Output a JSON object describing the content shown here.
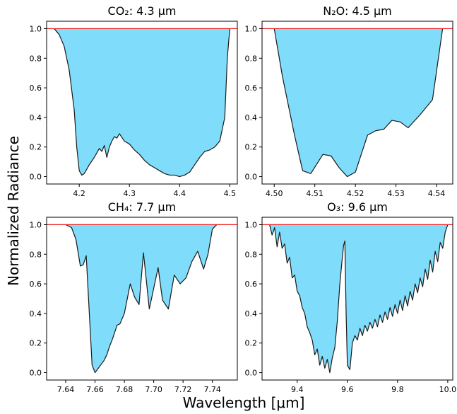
{
  "figure": {
    "ylabel": "Normalized Radiance",
    "xlabel": "Wavelength [μm]"
  },
  "colors": {
    "fill": "#7fdcfb",
    "edge": "#1a1a1a",
    "reference_line": "#ee2222"
  },
  "chart_data": [
    {
      "type": "area",
      "title": "CO₂: 4.3 μm",
      "xlim": [
        4.135,
        4.515
      ],
      "ylim": [
        -0.05,
        1.05
      ],
      "xticks": [
        4.2,
        4.3,
        4.4,
        4.5
      ],
      "xtick_labels": [
        "4.2",
        "4.3",
        "4.4",
        "4.5"
      ],
      "yticks": [
        0.0,
        0.2,
        0.4,
        0.6,
        0.8,
        1.0
      ],
      "ytick_labels": [
        "0.0",
        "0.2",
        "0.4",
        "0.6",
        "0.8",
        "1.0"
      ],
      "reference_y": 1.0,
      "x": [
        4.15,
        4.16,
        4.17,
        4.18,
        4.19,
        4.195,
        4.2,
        4.205,
        4.21,
        4.22,
        4.23,
        4.24,
        4.245,
        4.25,
        4.255,
        4.26,
        4.265,
        4.27,
        4.275,
        4.28,
        4.29,
        4.3,
        4.31,
        4.32,
        4.33,
        4.34,
        4.35,
        4.36,
        4.37,
        4.38,
        4.39,
        4.4,
        4.41,
        4.42,
        4.43,
        4.44,
        4.45,
        4.46,
        4.47,
        4.48,
        4.49,
        4.495,
        4.5
      ],
      "y": [
        1.0,
        0.96,
        0.88,
        0.72,
        0.45,
        0.2,
        0.04,
        0.01,
        0.02,
        0.08,
        0.13,
        0.19,
        0.17,
        0.21,
        0.13,
        0.2,
        0.24,
        0.27,
        0.26,
        0.29,
        0.24,
        0.22,
        0.18,
        0.15,
        0.11,
        0.08,
        0.06,
        0.04,
        0.02,
        0.01,
        0.01,
        0.0,
        0.01,
        0.03,
        0.08,
        0.13,
        0.17,
        0.18,
        0.2,
        0.24,
        0.4,
        0.8,
        1.0
      ]
    },
    {
      "type": "area",
      "title": "N₂O: 4.5 μm",
      "xlim": [
        4.497,
        4.544
      ],
      "ylim": [
        -0.05,
        1.05
      ],
      "xticks": [
        4.5,
        4.51,
        4.52,
        4.53,
        4.54
      ],
      "xtick_labels": [
        "4.50",
        "4.51",
        "4.52",
        "4.53",
        "4.54"
      ],
      "yticks": [
        0.0,
        0.2,
        0.4,
        0.6,
        0.8,
        1.0
      ],
      "ytick_labels": [
        "0.0",
        "0.2",
        "0.4",
        "0.6",
        "0.8",
        "1.0"
      ],
      "reference_y": 1.0,
      "x": [
        4.5,
        4.502,
        4.505,
        4.507,
        4.509,
        4.512,
        4.514,
        4.516,
        4.518,
        4.52,
        4.523,
        4.525,
        4.527,
        4.529,
        4.531,
        4.533,
        4.536,
        4.539,
        4.5415
      ],
      "y": [
        1.0,
        0.68,
        0.28,
        0.04,
        0.02,
        0.15,
        0.14,
        0.06,
        0.0,
        0.03,
        0.28,
        0.31,
        0.32,
        0.38,
        0.37,
        0.33,
        0.42,
        0.52,
        1.0
      ]
    },
    {
      "type": "area",
      "title": "CH₄: 7.7 μm",
      "xlim": [
        7.627,
        7.757
      ],
      "ylim": [
        -0.05,
        1.05
      ],
      "xticks": [
        7.64,
        7.66,
        7.68,
        7.7,
        7.72,
        7.74
      ],
      "xtick_labels": [
        "7.64",
        "7.66",
        "7.68",
        "7.70",
        "7.72",
        "7.74"
      ],
      "yticks": [
        0.0,
        0.2,
        0.4,
        0.6,
        0.8,
        1.0
      ],
      "ytick_labels": [
        "0.0",
        "0.2",
        "0.4",
        "0.6",
        "0.8",
        "1.0"
      ],
      "reference_y": 1.0,
      "x": [
        7.64,
        7.644,
        7.647,
        7.65,
        7.652,
        7.654,
        7.656,
        7.658,
        7.66,
        7.663,
        7.666,
        7.668,
        7.67,
        7.672,
        7.675,
        7.677,
        7.68,
        7.684,
        7.687,
        7.69,
        7.693,
        7.697,
        7.7,
        7.703,
        7.706,
        7.71,
        7.714,
        7.718,
        7.722,
        7.726,
        7.73,
        7.734,
        7.737,
        7.74,
        7.743
      ],
      "y": [
        1.0,
        0.98,
        0.9,
        0.72,
        0.73,
        0.79,
        0.42,
        0.05,
        0.0,
        0.04,
        0.08,
        0.12,
        0.18,
        0.23,
        0.32,
        0.33,
        0.4,
        0.6,
        0.51,
        0.46,
        0.81,
        0.43,
        0.57,
        0.71,
        0.49,
        0.43,
        0.66,
        0.6,
        0.64,
        0.75,
        0.82,
        0.7,
        0.8,
        0.97,
        1.0
      ]
    },
    {
      "type": "area",
      "title": "O₃: 9.6 μm",
      "xlim": [
        9.26,
        10.02
      ],
      "ylim": [
        -0.05,
        1.05
      ],
      "xticks": [
        9.4,
        9.6,
        9.8,
        10.0
      ],
      "xtick_labels": [
        "9.4",
        "9.6",
        "9.8",
        "10.0"
      ],
      "yticks": [
        0.0,
        0.2,
        0.4,
        0.6,
        0.8,
        1.0
      ],
      "ytick_labels": [
        "0.0",
        "0.2",
        "0.4",
        "0.6",
        "0.8",
        "1.0"
      ],
      "reference_y": 1.0,
      "x": [
        9.29,
        9.3,
        9.31,
        9.32,
        9.33,
        9.34,
        9.35,
        9.36,
        9.37,
        9.38,
        9.39,
        9.4,
        9.41,
        9.42,
        9.43,
        9.44,
        9.45,
        9.46,
        9.47,
        9.48,
        9.49,
        9.5,
        9.51,
        9.52,
        9.53,
        9.54,
        9.55,
        9.56,
        9.57,
        9.58,
        9.585,
        9.59,
        9.595,
        9.6,
        9.61,
        9.62,
        9.63,
        9.64,
        9.65,
        9.66,
        9.67,
        9.68,
        9.69,
        9.7,
        9.71,
        9.72,
        9.73,
        9.74,
        9.75,
        9.76,
        9.77,
        9.78,
        9.79,
        9.8,
        9.81,
        9.82,
        9.83,
        9.84,
        9.85,
        9.86,
        9.87,
        9.88,
        9.89,
        9.9,
        9.91,
        9.92,
        9.93,
        9.94,
        9.95,
        9.96,
        9.97,
        9.98,
        9.99,
        10.0
      ],
      "y": [
        1.0,
        0.93,
        0.98,
        0.85,
        0.95,
        0.84,
        0.87,
        0.74,
        0.78,
        0.64,
        0.66,
        0.55,
        0.52,
        0.44,
        0.4,
        0.31,
        0.27,
        0.22,
        0.12,
        0.16,
        0.05,
        0.11,
        0.03,
        0.09,
        0.0,
        0.1,
        0.17,
        0.35,
        0.6,
        0.78,
        0.86,
        0.89,
        0.4,
        0.05,
        0.02,
        0.2,
        0.25,
        0.22,
        0.3,
        0.25,
        0.32,
        0.28,
        0.34,
        0.3,
        0.36,
        0.31,
        0.39,
        0.34,
        0.41,
        0.36,
        0.44,
        0.38,
        0.46,
        0.4,
        0.49,
        0.42,
        0.52,
        0.45,
        0.55,
        0.49,
        0.6,
        0.54,
        0.64,
        0.58,
        0.7,
        0.63,
        0.76,
        0.68,
        0.82,
        0.75,
        0.88,
        0.84,
        0.95,
        1.0
      ]
    }
  ]
}
